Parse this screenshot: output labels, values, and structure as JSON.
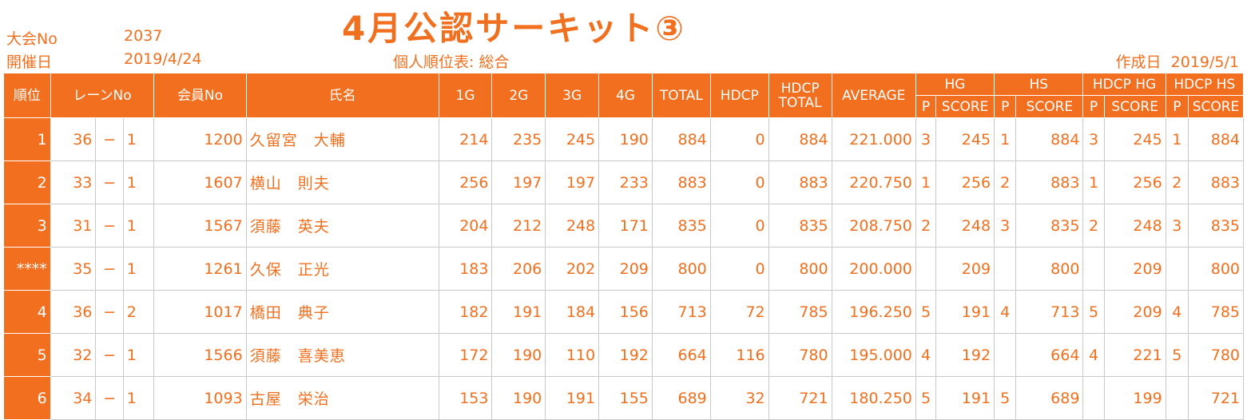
{
  "title": "4月公認サーキット③",
  "meta": {
    "taikai_label": "大会No",
    "taikai_no": "2037",
    "kaisai_label": "開催日",
    "kaisai_date": "2019/4/24",
    "subtitle": "個人順位表: 総合",
    "created_label": "作成日",
    "created_date": "2019/5/1"
  },
  "headers": {
    "rank": "順位",
    "lane": "レーンNo",
    "member": "会員No",
    "name": "氏名",
    "g1": "1G",
    "g2": "2G",
    "g3": "3G",
    "g4": "4G",
    "total": "TOTAL",
    "hdcp": "HDCP",
    "hdcp_total_1": "HDCP",
    "hdcp_total_2": "TOTAL",
    "average": "AVERAGE",
    "hg": "HG",
    "hs": "HS",
    "hdcp_hg": "HDCP HG",
    "hdcp_hs": "HDCP HS",
    "p": "P",
    "score": "SCORE"
  },
  "rows": [
    {
      "rank": "1",
      "lane_a": "36",
      "dash": "−",
      "lane_b": "1",
      "member": "1200",
      "name": "久留宮　大輔",
      "g1": "214",
      "g2": "235",
      "g3": "245",
      "g4": "190",
      "total": "884",
      "hdcp": "0",
      "hdcp_total": "884",
      "average": "221.000",
      "hg_p": "3",
      "hg_score": "245",
      "hs_p": "1",
      "hs_score": "884",
      "hhg_p": "3",
      "hhg_score": "245",
      "hhs_p": "1",
      "hhs_score": "884"
    },
    {
      "rank": "2",
      "lane_a": "33",
      "dash": "−",
      "lane_b": "1",
      "member": "1607",
      "name": "横山　則夫",
      "g1": "256",
      "g2": "197",
      "g3": "197",
      "g4": "233",
      "total": "883",
      "hdcp": "0",
      "hdcp_total": "883",
      "average": "220.750",
      "hg_p": "1",
      "hg_score": "256",
      "hs_p": "2",
      "hs_score": "883",
      "hhg_p": "1",
      "hhg_score": "256",
      "hhs_p": "2",
      "hhs_score": "883"
    },
    {
      "rank": "3",
      "lane_a": "31",
      "dash": "−",
      "lane_b": "1",
      "member": "1567",
      "name": "須藤　英夫",
      "g1": "204",
      "g2": "212",
      "g3": "248",
      "g4": "171",
      "total": "835",
      "hdcp": "0",
      "hdcp_total": "835",
      "average": "208.750",
      "hg_p": "2",
      "hg_score": "248",
      "hs_p": "3",
      "hs_score": "835",
      "hhg_p": "2",
      "hhg_score": "248",
      "hhs_p": "3",
      "hhs_score": "835"
    },
    {
      "rank": "****",
      "lane_a": "35",
      "dash": "−",
      "lane_b": "1",
      "member": "1261",
      "name": "久保　正光",
      "g1": "183",
      "g2": "206",
      "g3": "202",
      "g4": "209",
      "total": "800",
      "hdcp": "0",
      "hdcp_total": "800",
      "average": "200.000",
      "hg_p": "",
      "hg_score": "209",
      "hs_p": "",
      "hs_score": "800",
      "hhg_p": "",
      "hhg_score": "209",
      "hhs_p": "",
      "hhs_score": "800"
    },
    {
      "rank": "4",
      "lane_a": "36",
      "dash": "−",
      "lane_b": "2",
      "member": "1017",
      "name": "橋田　典子",
      "g1": "182",
      "g2": "191",
      "g3": "184",
      "g4": "156",
      "total": "713",
      "hdcp": "72",
      "hdcp_total": "785",
      "average": "196.250",
      "hg_p": "5",
      "hg_score": "191",
      "hs_p": "4",
      "hs_score": "713",
      "hhg_p": "5",
      "hhg_score": "209",
      "hhs_p": "4",
      "hhs_score": "785"
    },
    {
      "rank": "5",
      "lane_a": "32",
      "dash": "−",
      "lane_b": "1",
      "member": "1566",
      "name": "須藤　喜美恵",
      "g1": "172",
      "g2": "190",
      "g3": "110",
      "g4": "192",
      "total": "664",
      "hdcp": "116",
      "hdcp_total": "780",
      "average": "195.000",
      "hg_p": "4",
      "hg_score": "192",
      "hs_p": "",
      "hs_score": "664",
      "hhg_p": "4",
      "hhg_score": "221",
      "hhs_p": "5",
      "hhs_score": "780"
    },
    {
      "rank": "6",
      "lane_a": "34",
      "dash": "−",
      "lane_b": "1",
      "member": "1093",
      "name": "古屋　栄治",
      "g1": "153",
      "g2": "190",
      "g3": "191",
      "g4": "155",
      "total": "689",
      "hdcp": "32",
      "hdcp_total": "721",
      "average": "180.250",
      "hg_p": "5",
      "hg_score": "191",
      "hs_p": "5",
      "hs_score": "689",
      "hhg_p": "",
      "hhg_score": "199",
      "hhs_p": "",
      "hhs_score": "721"
    }
  ]
}
